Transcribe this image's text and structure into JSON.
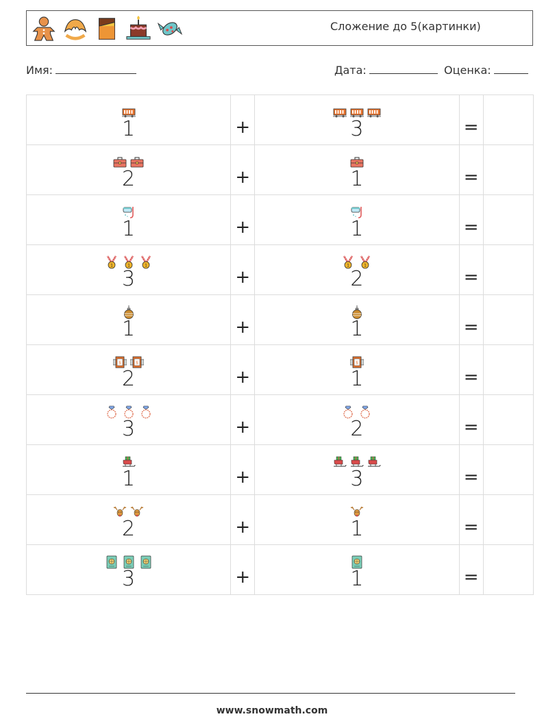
{
  "header": {
    "title": "Сложение до 5(картинки)",
    "icons": [
      "gingerbread-man-icon",
      "croissant-icon",
      "chocolate-bar-icon",
      "birthday-cake-icon",
      "candy-icon"
    ]
  },
  "info": {
    "name_label": "Имя:",
    "date_label": "Дата:",
    "grade_label": "Оценка:"
  },
  "operators": {
    "plus": "+",
    "equals": "="
  },
  "rows": [
    {
      "a": {
        "count": 1,
        "text": "1",
        "icon": "train-wagon-icon"
      },
      "b": {
        "count": 3,
        "text": "3",
        "icon": "train-wagon-icon"
      }
    },
    {
      "a": {
        "count": 2,
        "text": "2",
        "icon": "briefcase-icon"
      },
      "b": {
        "count": 1,
        "text": "1",
        "icon": "briefcase-icon"
      }
    },
    {
      "a": {
        "count": 1,
        "text": "1",
        "icon": "snorkel-mask-icon"
      },
      "b": {
        "count": 1,
        "text": "1",
        "icon": "snorkel-mask-icon"
      }
    },
    {
      "a": {
        "count": 3,
        "text": "3",
        "icon": "medal-icon"
      },
      "b": {
        "count": 2,
        "text": "2",
        "icon": "medal-icon"
      }
    },
    {
      "a": {
        "count": 1,
        "text": "1",
        "icon": "christmas-ornament-icon"
      },
      "b": {
        "count": 1,
        "text": "1",
        "icon": "christmas-ornament-icon"
      }
    },
    {
      "a": {
        "count": 2,
        "text": "2",
        "icon": "safe-box-icon"
      },
      "b": {
        "count": 1,
        "text": "1",
        "icon": "safe-box-icon"
      }
    },
    {
      "a": {
        "count": 3,
        "text": "3",
        "icon": "diamond-ring-icon"
      },
      "b": {
        "count": 2,
        "text": "2",
        "icon": "diamond-ring-icon"
      }
    },
    {
      "a": {
        "count": 1,
        "text": "1",
        "icon": "sleigh-icon"
      },
      "b": {
        "count": 3,
        "text": "3",
        "icon": "sleigh-icon"
      }
    },
    {
      "a": {
        "count": 2,
        "text": "2",
        "icon": "reindeer-icon"
      },
      "b": {
        "count": 1,
        "text": "1",
        "icon": "reindeer-icon"
      }
    },
    {
      "a": {
        "count": 3,
        "text": "3",
        "icon": "passport-icon"
      },
      "b": {
        "count": 1,
        "text": "1",
        "icon": "passport-icon"
      }
    }
  ],
  "footer": {
    "url": "www.snowmath.com"
  }
}
